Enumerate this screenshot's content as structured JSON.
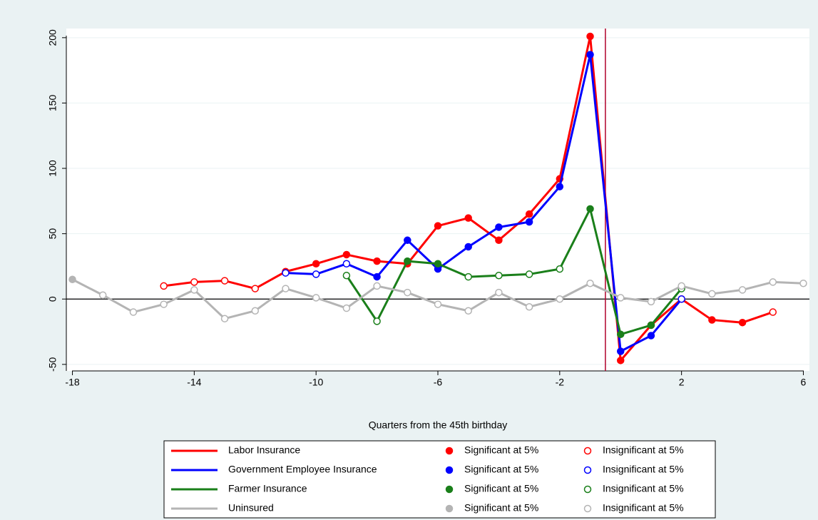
{
  "chart_data": {
    "type": "line",
    "x_label": "Quarters from the 45th birthday",
    "xlim": [
      -18.2,
      6.2
    ],
    "xticks": [
      -18,
      -14,
      -10,
      -6,
      -2,
      2,
      6
    ],
    "ylim": [
      -55,
      207
    ],
    "yticks": [
      -50,
      0,
      50,
      100,
      150,
      200
    ],
    "grid": true,
    "zero_line": 0,
    "vline": -0.5,
    "vline_color": "#b0002a",
    "legend_significant": "Significant at 5%",
    "legend_insignificant": "Insignificant at 5%",
    "series": [
      {
        "name": "Labor Insurance",
        "color": "#ff0000",
        "x": [
          -15,
          -14,
          -13,
          -12,
          -11,
          -10,
          -9,
          -8,
          -7,
          -6,
          -5,
          -4,
          -3,
          -2,
          -1,
          0,
          1,
          2,
          3,
          4,
          5
        ],
        "values": [
          10,
          13,
          14,
          8,
          21,
          27,
          34,
          29,
          27,
          56,
          62,
          45,
          65,
          92,
          201,
          -47,
          -20,
          0,
          -16,
          -18,
          -10
        ],
        "significant": [
          false,
          false,
          false,
          false,
          true,
          true,
          true,
          true,
          true,
          true,
          true,
          true,
          true,
          true,
          true,
          true,
          true,
          true,
          true,
          true,
          false
        ]
      },
      {
        "name": "Government Employee Insurance",
        "color": "#0000ff",
        "x": [
          -11,
          -10,
          -9,
          -8,
          -7,
          -6,
          -5,
          -4,
          -3,
          -2,
          -1,
          0,
          1,
          2
        ],
        "values": [
          20,
          19,
          27,
          17,
          45,
          23,
          40,
          55,
          59,
          86,
          187,
          -40,
          -28,
          0
        ],
        "significant": [
          false,
          false,
          false,
          true,
          true,
          true,
          true,
          true,
          true,
          true,
          true,
          true,
          true,
          false
        ]
      },
      {
        "name": "Farmer Insurance",
        "color": "#1a7f1a",
        "x": [
          -9,
          -8,
          -7,
          -6,
          -5,
          -4,
          -3,
          -2,
          -1,
          0,
          1,
          2
        ],
        "values": [
          18,
          -17,
          29,
          27,
          17,
          18,
          19,
          23,
          69,
          -27,
          -20,
          8
        ],
        "significant": [
          false,
          false,
          true,
          true,
          false,
          false,
          false,
          false,
          true,
          true,
          true,
          false
        ]
      },
      {
        "name": "Uninsured",
        "color": "#b4b4b4",
        "x": [
          -18,
          -17,
          -16,
          -15,
          -14,
          -13,
          -12,
          -11,
          -10,
          -9,
          -8,
          -7,
          -6,
          -5,
          -4,
          -3,
          -2,
          -1,
          0,
          1,
          2,
          3,
          4,
          5,
          6
        ],
        "values": [
          15,
          3,
          -10,
          -4,
          7,
          -15,
          -9,
          8,
          1,
          -7,
          10,
          5,
          -4,
          -9,
          5,
          -6,
          0,
          12,
          1,
          -2,
          10,
          4,
          7,
          13,
          12
        ],
        "significant": [
          true,
          false,
          false,
          false,
          false,
          false,
          false,
          false,
          false,
          false,
          false,
          false,
          false,
          false,
          false,
          false,
          false,
          false,
          false,
          false,
          false,
          false,
          false,
          false,
          false
        ]
      }
    ]
  }
}
